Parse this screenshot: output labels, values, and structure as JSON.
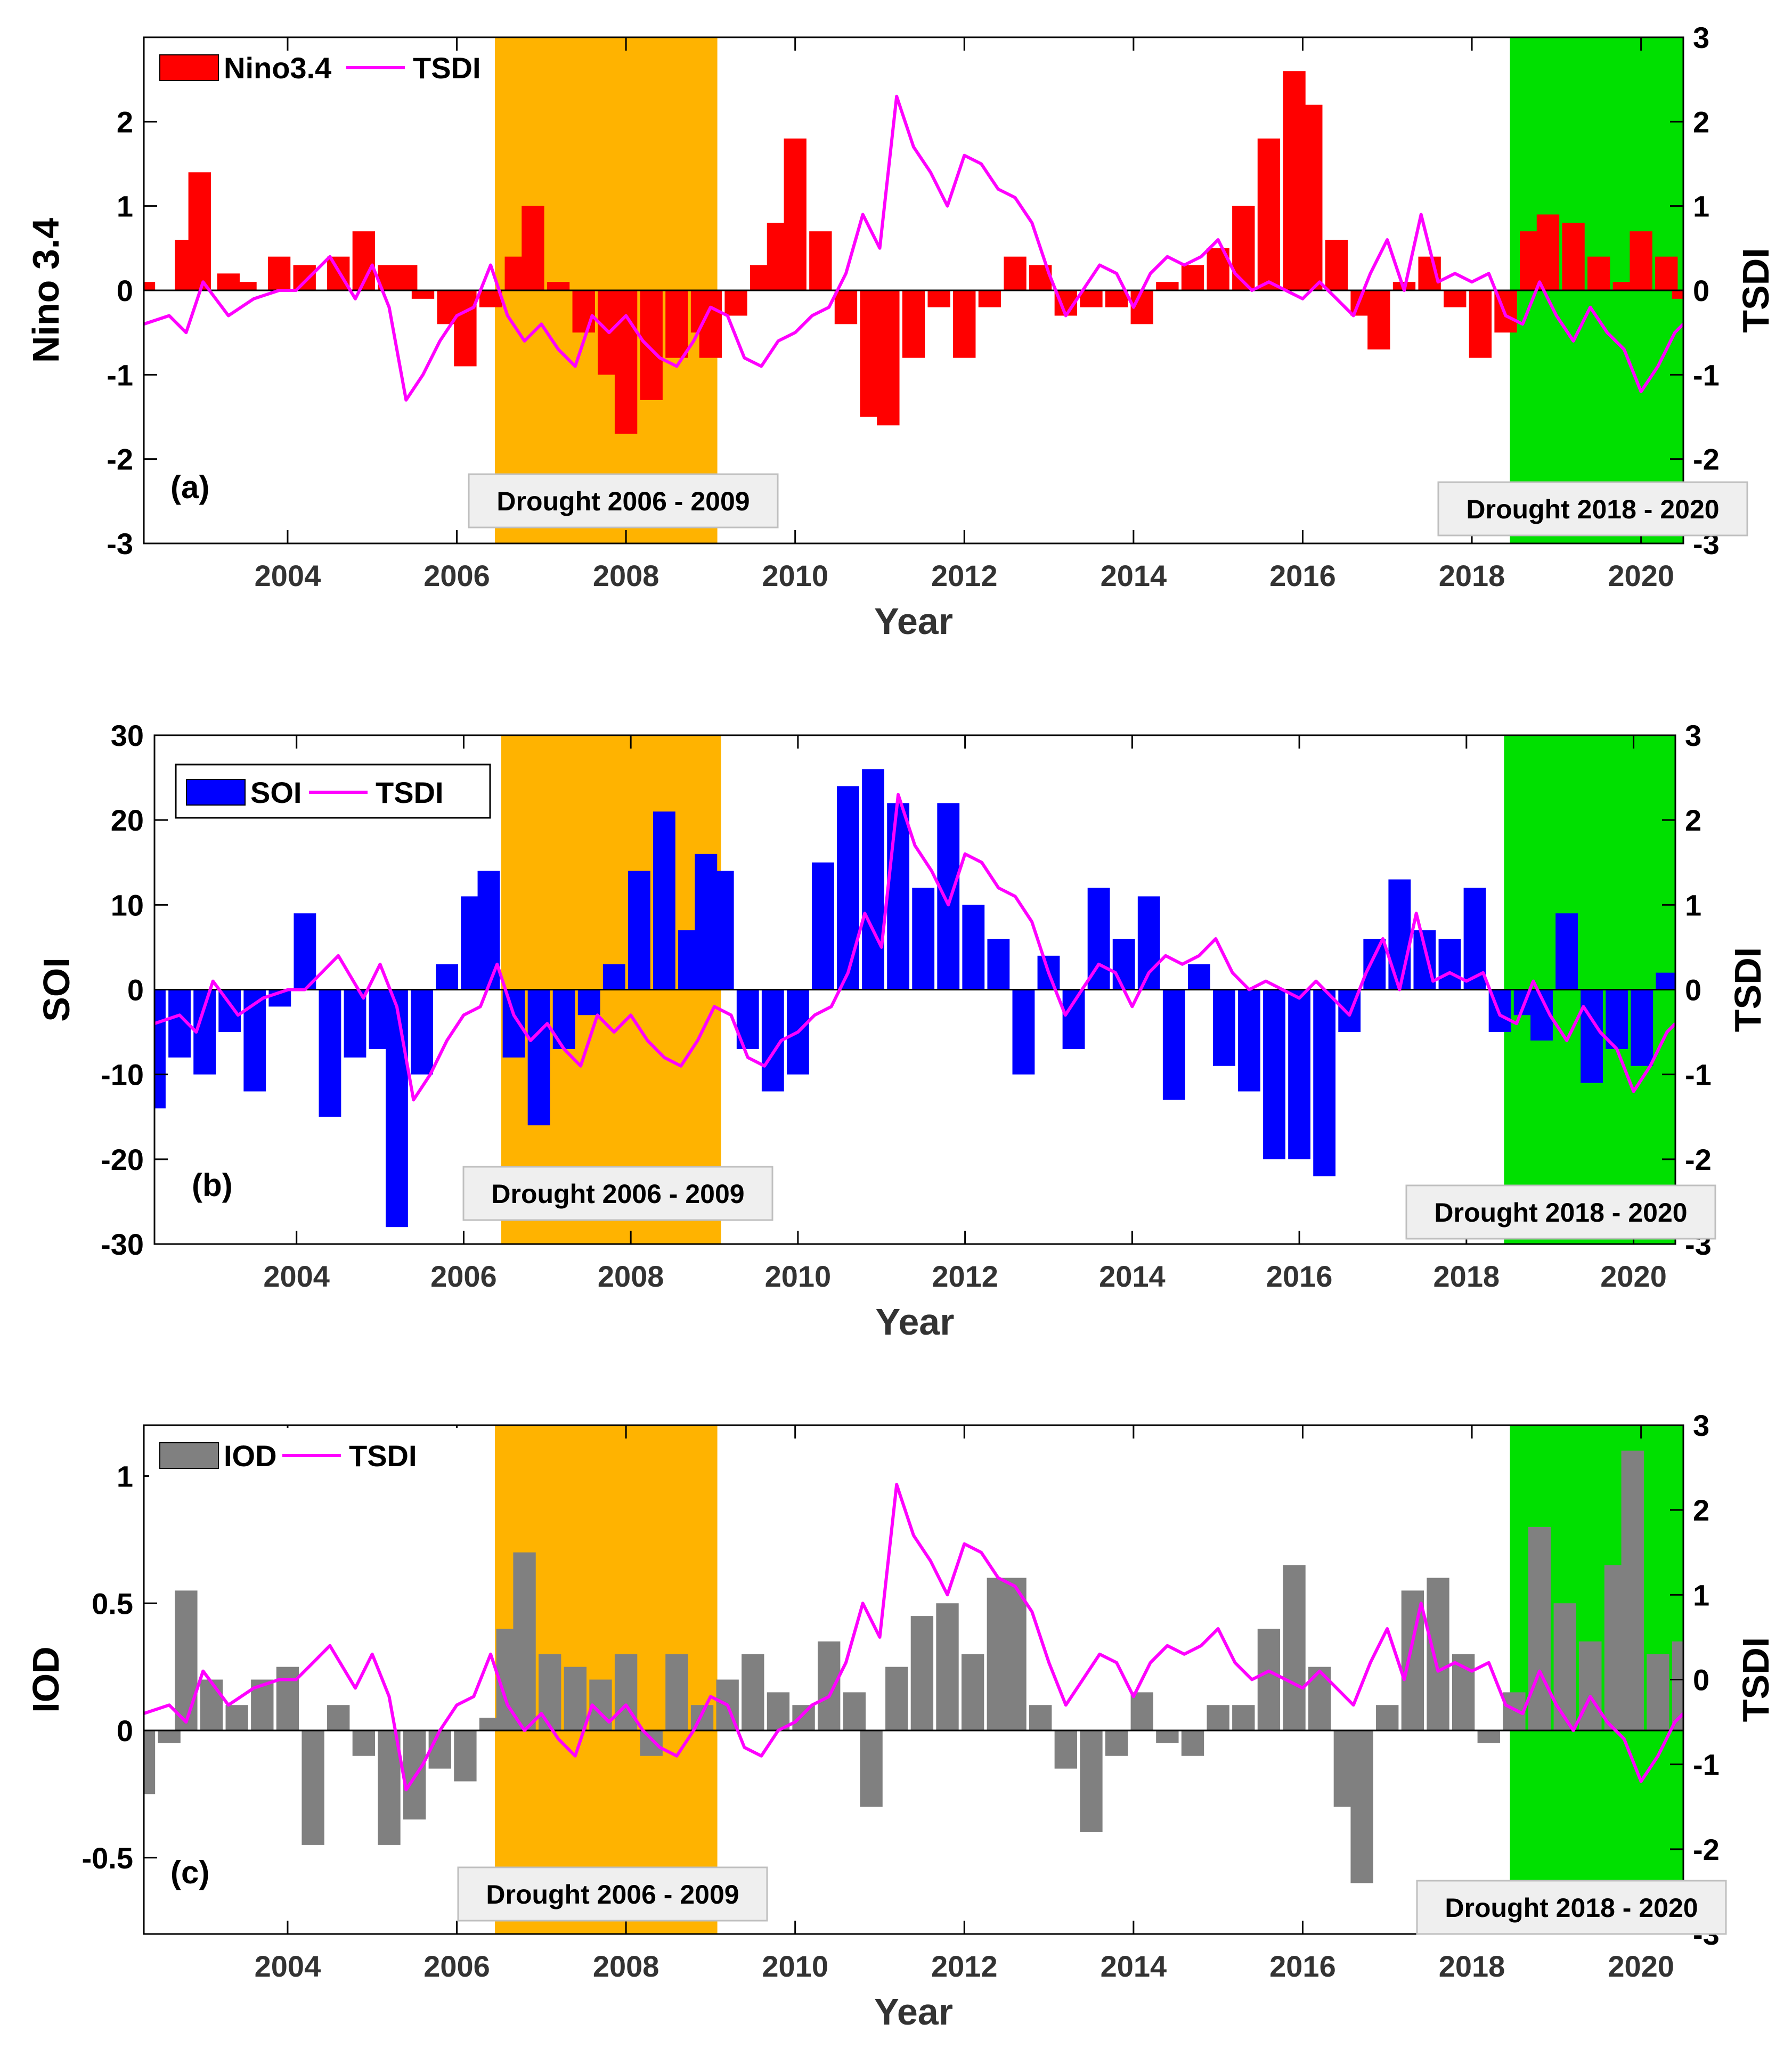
{
  "colors": {
    "nino": "#ff0000",
    "soi": "#0000ff",
    "iod": "#808080",
    "tsdi": "#ff00ff",
    "drought1": "#ffb300",
    "drought2": "#00e000",
    "annot_bg": "#efefef"
  },
  "chart_data": [
    {
      "type": "bar+line",
      "panel_label": "(a)",
      "xlabel": "Year",
      "ylabel": "Nino 3.4",
      "y2label": "TSDI",
      "xlim": [
        2002.3,
        2020.5
      ],
      "ylim": [
        -3,
        3
      ],
      "y2lim": [
        -3,
        3
      ],
      "xticks": [
        2004,
        2006,
        2008,
        2010,
        2012,
        2014,
        2016,
        2018,
        2020
      ],
      "xtick_labels": [
        "2004",
        "2006",
        "2008",
        "2010",
        "2012",
        "2014",
        "2016",
        "2018",
        "2020"
      ],
      "yticks": [
        -3,
        -2,
        -1,
        0,
        1,
        2
      ],
      "ytick_labels": [
        "-3",
        "-2",
        "-1",
        "0",
        "1",
        "2"
      ],
      "y2ticks": [
        -3,
        -2,
        -1,
        0,
        1,
        2,
        3
      ],
      "y2tick_labels": [
        "-3",
        "-2",
        "-1",
        "0",
        "1",
        "2",
        "3"
      ],
      "legend": [
        "Nino3.4",
        "TSDI"
      ],
      "shaded_periods": [
        {
          "label": "Drought 2006 - 2009",
          "from": 2006.45,
          "to": 2009.08
        },
        {
          "label": "Drought 2018 - 2020",
          "from": 2018.45,
          "to": 2020.5
        }
      ],
      "bar_series": {
        "name": "Nino3.4",
        "x": [
          2002.3,
          2002.8,
          2002.96,
          2003.3,
          2003.5,
          2003.9,
          2004.2,
          2004.6,
          2004.9,
          2005.2,
          2005.4,
          2005.6,
          2005.9,
          2006.1,
          2006.4,
          2006.7,
          2006.9,
          2007.2,
          2007.5,
          2007.8,
          2008.0,
          2008.3,
          2008.6,
          2008.9,
          2009.0,
          2009.3,
          2009.6,
          2009.8,
          2010.0,
          2010.3,
          2010.6,
          2010.9,
          2011.1,
          2011.4,
          2011.7,
          2012.0,
          2012.3,
          2012.6,
          2012.9,
          2013.2,
          2013.5,
          2013.8,
          2014.1,
          2014.4,
          2014.7,
          2015.0,
          2015.3,
          2015.6,
          2015.9,
          2016.1,
          2016.4,
          2016.7,
          2016.9,
          2017.2,
          2017.5,
          2017.8,
          2018.1,
          2018.4,
          2018.7,
          2018.9,
          2019.2,
          2019.5,
          2019.8,
          2020.0,
          2020.3,
          2020.5
        ],
        "values": [
          0.1,
          0.6,
          1.4,
          0.2,
          0.1,
          0.4,
          0.3,
          0.4,
          0.7,
          0.3,
          0.3,
          -0.1,
          -0.4,
          -0.9,
          -0.2,
          0.4,
          1.0,
          0.1,
          -0.5,
          -1.0,
          -1.7,
          -1.3,
          -0.8,
          -0.5,
          -0.8,
          -0.3,
          0.3,
          0.8,
          1.8,
          0.7,
          -0.4,
          -1.5,
          -1.6,
          -0.8,
          -0.2,
          -0.8,
          -0.2,
          0.4,
          0.3,
          -0.3,
          -0.2,
          -0.2,
          -0.4,
          0.1,
          0.3,
          0.5,
          1.0,
          1.8,
          2.6,
          2.2,
          0.6,
          -0.3,
          -0.7,
          0.1,
          0.4,
          -0.2,
          -0.8,
          -0.5,
          0.7,
          0.9,
          0.8,
          0.4,
          0.1,
          0.7,
          0.4,
          -0.1
        ]
      },
      "annotations": [
        "Drought 2006 - 2009",
        "Drought 2018 - 2020"
      ]
    },
    {
      "type": "bar+line",
      "panel_label": "(b)",
      "xlabel": "Year",
      "ylabel": "SOI",
      "y2label": "TSDI",
      "xlim": [
        2002.3,
        2020.5
      ],
      "ylim": [
        -30,
        30
      ],
      "y2lim": [
        -3,
        3
      ],
      "xticks": [
        2004,
        2006,
        2008,
        2010,
        2012,
        2014,
        2016,
        2018,
        2020
      ],
      "xtick_labels": [
        "2004",
        "2006",
        "2008",
        "2010",
        "2012",
        "2014",
        "2016",
        "2018",
        "2020"
      ],
      "yticks": [
        -30,
        -20,
        -10,
        0,
        10,
        20,
        30
      ],
      "ytick_labels": [
        "-30",
        "-20",
        "-10",
        "0",
        "10",
        "20",
        "30"
      ],
      "y2ticks": [
        -3,
        -2,
        -1,
        0,
        1,
        2,
        3
      ],
      "y2tick_labels": [
        "-3",
        "-2",
        "-1",
        "0",
        "1",
        "2",
        "3"
      ],
      "legend": [
        "SOI",
        "TSDI"
      ],
      "shaded_periods": [
        {
          "label": "Drought 2006 - 2009",
          "from": 2006.45,
          "to": 2009.08
        },
        {
          "label": "Drought 2018 - 2020",
          "from": 2018.45,
          "to": 2020.5
        }
      ],
      "bar_series": {
        "name": "SOI",
        "x": [
          2002.3,
          2002.6,
          2002.9,
          2003.2,
          2003.5,
          2003.8,
          2004.1,
          2004.4,
          2004.7,
          2005.0,
          2005.2,
          2005.5,
          2005.8,
          2006.1,
          2006.3,
          2006.6,
          2006.9,
          2007.2,
          2007.5,
          2007.8,
          2008.1,
          2008.4,
          2008.7,
          2008.9,
          2009.1,
          2009.4,
          2009.7,
          2010.0,
          2010.3,
          2010.6,
          2010.9,
          2011.2,
          2011.5,
          2011.8,
          2012.1,
          2012.4,
          2012.7,
          2013.0,
          2013.3,
          2013.6,
          2013.9,
          2014.2,
          2014.5,
          2014.8,
          2015.1,
          2015.4,
          2015.7,
          2016.0,
          2016.3,
          2016.6,
          2016.9,
          2017.2,
          2017.5,
          2017.8,
          2018.1,
          2018.4,
          2018.7,
          2018.9,
          2019.2,
          2019.5,
          2019.8,
          2020.1,
          2020.4
        ],
        "values": [
          -14,
          -8,
          -10,
          -5,
          -12,
          -2,
          9,
          -15,
          -8,
          -7,
          -28,
          -10,
          3,
          11,
          14,
          -8,
          -16,
          -7,
          -3,
          3,
          14,
          21,
          7,
          16,
          14,
          -7,
          -12,
          -10,
          15,
          24,
          26,
          22,
          12,
          22,
          10,
          6,
          -10,
          4,
          -7,
          12,
          6,
          11,
          -13,
          3,
          -9,
          -12,
          -20,
          -20,
          -22,
          -5,
          6,
          13,
          7,
          6,
          12,
          -5,
          -3,
          -6,
          9,
          -11,
          -7,
          -9,
          2
        ]
      },
      "annotations": [
        "Drought 2006 - 2009",
        "Drought 2018 - 2020"
      ]
    },
    {
      "type": "bar+line",
      "panel_label": "(c)",
      "xlabel": "Year",
      "ylabel": "IOD",
      "y2label": "TSDI",
      "xlim": [
        2002.3,
        2020.5
      ],
      "ylim": [
        -0.8,
        1.2
      ],
      "y2lim": [
        -3,
        3
      ],
      "xticks": [
        2004,
        2006,
        2008,
        2010,
        2012,
        2014,
        2016,
        2018,
        2020
      ],
      "xtick_labels": [
        "2004",
        "2006",
        "2008",
        "2010",
        "2012",
        "2014",
        "2016",
        "2018",
        "2020"
      ],
      "yticks": [
        -0.5,
        0,
        0.5,
        1
      ],
      "ytick_labels": [
        "-0.5",
        "0",
        "0.5",
        "1"
      ],
      "y2ticks": [
        -3,
        -2,
        -1,
        0,
        1,
        2,
        3
      ],
      "y2tick_labels": [
        "-3",
        "-2",
        "-1",
        "0",
        "1",
        "2",
        "3"
      ],
      "legend": [
        "IOD",
        "TSDI"
      ],
      "shaded_periods": [
        {
          "label": "Drought 2006 - 2009",
          "from": 2006.45,
          "to": 2009.08
        },
        {
          "label": "Drought 2018 - 2020",
          "from": 2018.45,
          "to": 2020.5
        }
      ],
      "bar_series": {
        "name": "IOD",
        "x": [
          2002.3,
          2002.6,
          2002.8,
          2003.1,
          2003.4,
          2003.7,
          2004.0,
          2004.3,
          2004.6,
          2004.9,
          2005.2,
          2005.5,
          2005.8,
          2006.1,
          2006.4,
          2006.6,
          2006.8,
          2007.1,
          2007.4,
          2007.7,
          2008.0,
          2008.3,
          2008.6,
          2008.9,
          2009.2,
          2009.5,
          2009.8,
          2010.1,
          2010.4,
          2010.7,
          2010.9,
          2011.2,
          2011.5,
          2011.8,
          2012.1,
          2012.4,
          2012.6,
          2012.9,
          2013.2,
          2013.5,
          2013.8,
          2014.1,
          2014.4,
          2014.7,
          2015.0,
          2015.3,
          2015.6,
          2015.9,
          2016.2,
          2016.5,
          2016.7,
          2017.0,
          2017.3,
          2017.6,
          2017.9,
          2018.2,
          2018.5,
          2018.8,
          2019.1,
          2019.4,
          2019.7,
          2019.9,
          2020.2,
          2020.5
        ],
        "values": [
          -0.25,
          -0.05,
          0.55,
          0.2,
          0.1,
          0.2,
          0.25,
          -0.45,
          0.1,
          -0.1,
          -0.45,
          -0.35,
          -0.15,
          -0.2,
          0.05,
          0.4,
          0.7,
          0.3,
          0.25,
          0.2,
          0.3,
          -0.1,
          0.3,
          0.1,
          0.2,
          0.3,
          0.15,
          0.1,
          0.35,
          0.15,
          -0.3,
          0.25,
          0.45,
          0.5,
          0.3,
          0.6,
          0.6,
          0.1,
          -0.15,
          -0.4,
          -0.1,
          0.15,
          -0.05,
          -0.1,
          0.1,
          0.1,
          0.4,
          0.65,
          0.25,
          -0.3,
          -0.6,
          0.1,
          0.55,
          0.6,
          0.3,
          -0.05,
          0.15,
          0.8,
          0.5,
          0.35,
          0.65,
          1.1,
          0.3,
          0.35
        ]
      },
      "annotations": [
        "Drought 2006 - 2009",
        "Drought 2018 - 2020"
      ]
    }
  ],
  "tsdi": {
    "name": "TSDI",
    "x": [
      2002.3,
      2002.6,
      2002.8,
      2003.0,
      2003.3,
      2003.6,
      2003.9,
      2004.1,
      2004.3,
      2004.5,
      2004.8,
      2005.0,
      2005.2,
      2005.4,
      2005.6,
      2005.8,
      2006.0,
      2006.2,
      2006.4,
      2006.6,
      2006.8,
      2007.0,
      2007.2,
      2007.4,
      2007.6,
      2007.8,
      2008.0,
      2008.2,
      2008.4,
      2008.6,
      2008.8,
      2009.0,
      2009.2,
      2009.4,
      2009.6,
      2009.8,
      2010.0,
      2010.2,
      2010.4,
      2010.6,
      2010.8,
      2011.0,
      2011.2,
      2011.4,
      2011.6,
      2011.8,
      2012.0,
      2012.2,
      2012.4,
      2012.6,
      2012.8,
      2013.0,
      2013.2,
      2013.4,
      2013.6,
      2013.8,
      2014.0,
      2014.2,
      2014.4,
      2014.6,
      2014.8,
      2015.0,
      2015.2,
      2015.4,
      2015.6,
      2015.8,
      2016.0,
      2016.2,
      2016.4,
      2016.6,
      2016.8,
      2017.0,
      2017.2,
      2017.4,
      2017.6,
      2017.8,
      2018.0,
      2018.2,
      2018.4,
      2018.6,
      2018.8,
      2019.0,
      2019.2,
      2019.4,
      2019.6,
      2019.8,
      2020.0,
      2020.2,
      2020.4,
      2020.5
    ],
    "values": [
      -0.4,
      -0.3,
      -0.5,
      0.1,
      -0.3,
      -0.1,
      0.0,
      0.0,
      0.2,
      0.4,
      -0.1,
      0.3,
      -0.2,
      -1.3,
      -1.0,
      -0.6,
      -0.3,
      -0.2,
      0.3,
      -0.3,
      -0.6,
      -0.4,
      -0.7,
      -0.9,
      -0.3,
      -0.5,
      -0.3,
      -0.6,
      -0.8,
      -0.9,
      -0.6,
      -0.2,
      -0.3,
      -0.8,
      -0.9,
      -0.6,
      -0.5,
      -0.3,
      -0.2,
      0.2,
      0.9,
      0.5,
      2.3,
      1.7,
      1.4,
      1.0,
      1.6,
      1.5,
      1.2,
      1.1,
      0.8,
      0.2,
      -0.3,
      0.0,
      0.3,
      0.2,
      -0.2,
      0.2,
      0.4,
      0.3,
      0.4,
      0.6,
      0.2,
      0.0,
      0.1,
      0.0,
      -0.1,
      0.1,
      -0.1,
      -0.3,
      0.2,
      0.6,
      0.0,
      0.9,
      0.1,
      0.2,
      0.1,
      0.2,
      -0.3,
      -0.4,
      0.1,
      -0.3,
      -0.6,
      -0.2,
      -0.5,
      -0.7,
      -1.2,
      -0.9,
      -0.5,
      -0.4
    ]
  }
}
